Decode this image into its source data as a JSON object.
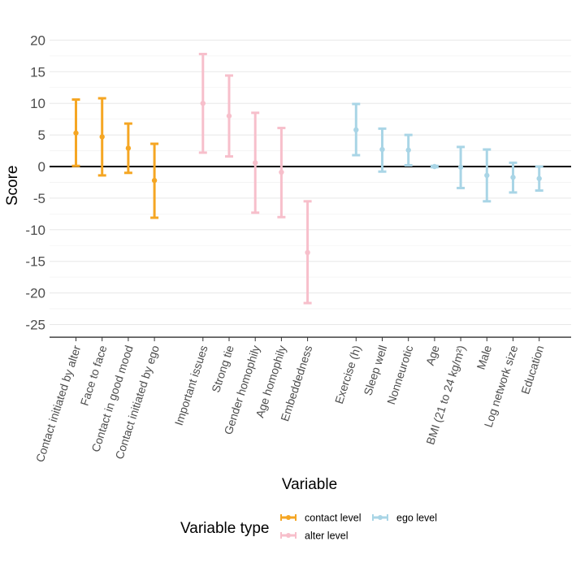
{
  "chart_data": {
    "type": "errorbar",
    "ylabel": "Score",
    "xlabel": "Variable",
    "ylim": [
      -27,
      21
    ],
    "yticks": [
      20,
      15,
      10,
      5,
      0,
      -5,
      -10,
      -15,
      -20,
      -25
    ],
    "grid": "horizontal",
    "zero_line": true,
    "legend": {
      "title": "Variable type",
      "position": "bottom",
      "entries": [
        {
          "name": "contact level",
          "color": "#F5A623"
        },
        {
          "name": "alter level",
          "color": "#F7BFCB"
        },
        {
          "name": "ego level",
          "color": "#A9D5E6"
        }
      ]
    },
    "points": [
      {
        "label": "Contact initiated by alter",
        "group": "contact level",
        "estimate": 5.3,
        "lower": 0.1,
        "upper": 10.6
      },
      {
        "label": "Face to face",
        "group": "contact level",
        "estimate": 4.7,
        "lower": -1.4,
        "upper": 10.8
      },
      {
        "label": "Contact in good mood",
        "group": "contact level",
        "estimate": 2.9,
        "lower": -1.0,
        "upper": 6.8
      },
      {
        "label": "Contact initiated by ego",
        "group": "contact level",
        "estimate": -2.2,
        "lower": -8.1,
        "upper": 3.6
      },
      {
        "label": "Important issues",
        "group": "alter level",
        "estimate": 10.0,
        "lower": 2.2,
        "upper": 17.8
      },
      {
        "label": "Strong tie",
        "group": "alter level",
        "estimate": 8.0,
        "lower": 1.6,
        "upper": 14.4
      },
      {
        "label": "Gender homophily",
        "group": "alter level",
        "estimate": 0.6,
        "lower": -7.3,
        "upper": 8.5
      },
      {
        "label": "Age homophily",
        "group": "alter level",
        "estimate": -0.9,
        "lower": -8.0,
        "upper": 6.1
      },
      {
        "label": "Embeddedness",
        "group": "alter level",
        "estimate": -13.6,
        "lower": -21.6,
        "upper": -5.5
      },
      {
        "label": "Exercise (h)",
        "group": "ego level",
        "estimate": 5.8,
        "lower": 1.8,
        "upper": 9.9
      },
      {
        "label": "Sleep well",
        "group": "ego level",
        "estimate": 2.7,
        "lower": -0.8,
        "upper": 6.0
      },
      {
        "label": "Nonneurotic",
        "group": "ego level",
        "estimate": 2.6,
        "lower": 0.2,
        "upper": 5.0
      },
      {
        "label": "Age",
        "group": "ego level",
        "estimate": 0.0,
        "lower": -0.1,
        "upper": 0.1
      },
      {
        "label": "BMI (21 to 24 kg/m²)",
        "group": "ego level",
        "estimate": -0.1,
        "lower": -3.4,
        "upper": 3.1
      },
      {
        "label": "Male",
        "group": "ego level",
        "estimate": -1.4,
        "lower": -5.5,
        "upper": 2.7
      },
      {
        "label": "Log network size",
        "group": "ego level",
        "estimate": -1.7,
        "lower": -4.1,
        "upper": 0.6
      },
      {
        "label": "Education",
        "group": "ego level",
        "estimate": -1.9,
        "lower": -3.8,
        "upper": 0.0
      }
    ]
  }
}
